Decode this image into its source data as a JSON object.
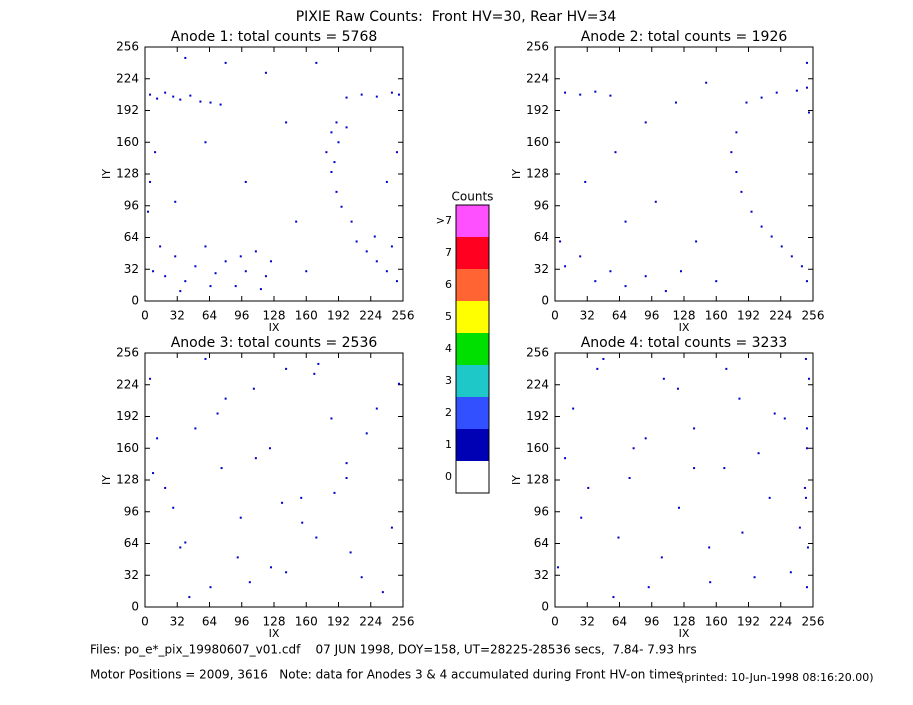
{
  "title": "PIXIE Raw Counts:  Front HV=30, Rear HV=34",
  "chart_data": [
    {
      "type": "scatter",
      "title": "Anode 1: total counts = 5768",
      "x_label": "IX",
      "y_label": "IY",
      "color": "#0000c8",
      "xlim": [
        0,
        256
      ],
      "ylim": [
        0,
        256
      ],
      "xticks": [
        0,
        32,
        64,
        96,
        128,
        160,
        192,
        224,
        256
      ],
      "yticks": [
        0,
        32,
        64,
        96,
        128,
        160,
        192,
        224,
        256
      ],
      "x": [
        5,
        12,
        20,
        28,
        35,
        45,
        55,
        65,
        75,
        200,
        215,
        230,
        245,
        252,
        190,
        185,
        180,
        185,
        190,
        195,
        200,
        192,
        188,
        205,
        210,
        220,
        230,
        240,
        228,
        245,
        250,
        8,
        20,
        30,
        40,
        50,
        60,
        70,
        80,
        90,
        100,
        110,
        120,
        15,
        35,
        65,
        95,
        115,
        125,
        10,
        30,
        60,
        100,
        140,
        150,
        120,
        80,
        40,
        160,
        170,
        5,
        3,
        250,
        240
      ],
      "values": [
        208,
        204,
        210,
        206,
        203,
        207,
        201,
        200,
        198,
        205,
        208,
        206,
        210,
        208,
        180,
        170,
        150,
        130,
        110,
        95,
        175,
        160,
        140,
        80,
        60,
        50,
        40,
        30,
        65,
        55,
        20,
        30,
        25,
        45,
        20,
        35,
        55,
        28,
        40,
        15,
        30,
        50,
        25,
        55,
        10,
        15,
        45,
        12,
        40,
        150,
        100,
        160,
        120,
        180,
        80,
        230,
        240,
        245,
        30,
        240,
        120,
        90,
        150,
        120
      ]
    },
    {
      "type": "scatter",
      "title": "Anode 2: total counts = 1926",
      "x_label": "IX",
      "y_label": "IY",
      "color": "#0000c8",
      "xlim": [
        0,
        256
      ],
      "ylim": [
        0,
        256
      ],
      "xticks": [
        0,
        32,
        64,
        96,
        128,
        160,
        192,
        224,
        256
      ],
      "yticks": [
        0,
        32,
        64,
        96,
        128,
        160,
        192,
        224,
        256
      ],
      "x": [
        10,
        25,
        40,
        55,
        190,
        205,
        220,
        240,
        250,
        180,
        175,
        180,
        185,
        195,
        205,
        215,
        225,
        235,
        245,
        250,
        10,
        25,
        40,
        55,
        70,
        90,
        110,
        125,
        5,
        60,
        100,
        140,
        120,
        30,
        150,
        90,
        160,
        250,
        252,
        70
      ],
      "values": [
        210,
        208,
        211,
        207,
        200,
        205,
        210,
        212,
        215,
        170,
        150,
        130,
        110,
        90,
        75,
        65,
        55,
        45,
        35,
        20,
        35,
        45,
        20,
        30,
        15,
        25,
        10,
        30,
        60,
        150,
        100,
        60,
        200,
        120,
        220,
        180,
        20,
        240,
        190,
        80
      ]
    },
    {
      "type": "scatter",
      "title": "Anode 3: total counts = 2536",
      "x_label": "IX",
      "y_label": "IY",
      "color": "#0000c8",
      "xlim": [
        0,
        256
      ],
      "ylim": [
        0,
        256
      ],
      "xticks": [
        0,
        32,
        64,
        96,
        128,
        160,
        192,
        224,
        256
      ],
      "yticks": [
        0,
        32,
        64,
        96,
        128,
        160,
        192,
        224,
        256
      ],
      "x": [
        5,
        20,
        35,
        50,
        65,
        80,
        95,
        110,
        125,
        140,
        155,
        170,
        185,
        200,
        215,
        230,
        245,
        12,
        28,
        44,
        60,
        76,
        92,
        108,
        124,
        140,
        156,
        172,
        188,
        204,
        220,
        236,
        252,
        8,
        40,
        72,
        104,
        136,
        168,
        200
      ],
      "values": [
        230,
        120,
        60,
        180,
        20,
        210,
        90,
        150,
        40,
        240,
        110,
        70,
        190,
        130,
        30,
        200,
        80,
        170,
        100,
        10,
        250,
        140,
        50,
        220,
        160,
        35,
        85,
        245,
        115,
        55,
        175,
        15,
        225,
        135,
        65,
        195,
        25,
        105,
        235,
        145
      ]
    },
    {
      "type": "scatter",
      "title": "Anode 4: total counts = 3233",
      "x_label": "IX",
      "y_label": "IY",
      "color": "#0000c8",
      "xlim": [
        0,
        256
      ],
      "ylim": [
        0,
        256
      ],
      "xticks": [
        0,
        32,
        64,
        96,
        128,
        160,
        192,
        224,
        256
      ],
      "yticks": [
        0,
        32,
        64,
        96,
        128,
        160,
        192,
        224,
        256
      ],
      "x": [
        3,
        18,
        33,
        48,
        63,
        78,
        93,
        108,
        123,
        138,
        153,
        168,
        183,
        198,
        213,
        228,
        243,
        250,
        251,
        249,
        250,
        252,
        10,
        26,
        42,
        58,
        74,
        90,
        106,
        122,
        138,
        154,
        170,
        186,
        202,
        218,
        234,
        248,
        250,
        249
      ],
      "values": [
        40,
        200,
        120,
        250,
        70,
        160,
        20,
        230,
        100,
        180,
        60,
        140,
        210,
        30,
        110,
        190,
        80,
        20,
        60,
        110,
        160,
        230,
        150,
        90,
        240,
        10,
        130,
        170,
        50,
        220,
        140,
        25,
        240,
        75,
        155,
        195,
        35,
        120,
        180,
        250
      ]
    },
    {
      "type": "colorbar",
      "title": "Counts",
      "categories": [
        "0",
        "1",
        "2",
        "3",
        "4",
        "5",
        "6",
        "7",
        ">7"
      ],
      "colors": [
        "#ffffff",
        "#0000b4",
        "#3250ff",
        "#1ec8c8",
        "#00e000",
        "#ffff00",
        "#ff6432",
        "#ff0020",
        "#ff50ff"
      ]
    }
  ],
  "footer": {
    "files": "Files: po_e*_pix_19980607_v01.cdf    07 JUN 1998, DOY=158, UT=28225-28536 secs,  7.84- 7.93 hrs",
    "note": "Motor Positions = 2009, 3616   Note: data for Anodes 3 & 4 accumulated during Front HV-on times",
    "printed": "(printed: 10-Jun-1998 08:16:20.00)"
  }
}
